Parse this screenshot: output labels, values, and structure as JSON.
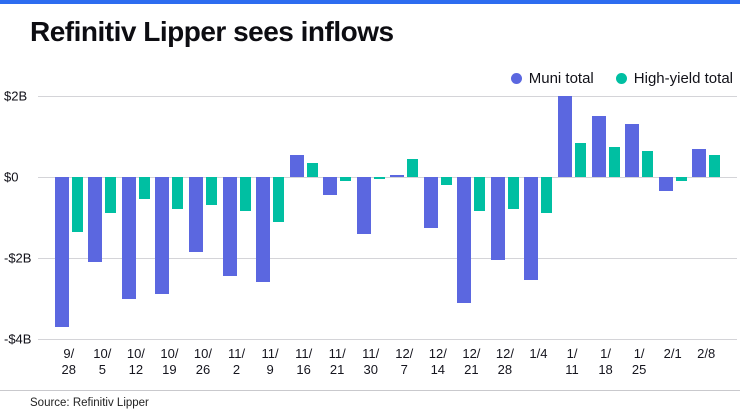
{
  "accent_color": "#2d6cf0",
  "title": "Refinitiv Lipper sees inflows",
  "source": "Source: Refinitiv Lipper",
  "legend": [
    {
      "label": "Muni total",
      "color": "#5b67e0"
    },
    {
      "label": "High-yield total",
      "color": "#00bfa2"
    }
  ],
  "chart_data": {
    "type": "bar",
    "title": "Refinitiv Lipper sees inflows",
    "categories": [
      "9/28",
      "10/5",
      "10/12",
      "10/19",
      "10/26",
      "11/2",
      "11/9",
      "11/16",
      "11/21",
      "11/30",
      "12/7",
      "12/14",
      "12/21",
      "12/28",
      "1/4",
      "1/11",
      "1/18",
      "1/25",
      "2/1",
      "2/8"
    ],
    "category_lines": [
      [
        "9/",
        "28"
      ],
      [
        "10/",
        "5"
      ],
      [
        "10/",
        "12"
      ],
      [
        "10/",
        "19"
      ],
      [
        "10/",
        "26"
      ],
      [
        "11/",
        "2"
      ],
      [
        "11/",
        "9"
      ],
      [
        "11/",
        "16"
      ],
      [
        "11/",
        "21"
      ],
      [
        "11/",
        "30"
      ],
      [
        "12/",
        "7"
      ],
      [
        "12/",
        "14"
      ],
      [
        "12/",
        "21"
      ],
      [
        "12/",
        "28"
      ],
      [
        "1/4"
      ],
      [
        "1/",
        "11"
      ],
      [
        "1/",
        "18"
      ],
      [
        "1/",
        "25"
      ],
      [
        "2/1"
      ],
      [
        "2/8"
      ]
    ],
    "series": [
      {
        "name": "Muni total",
        "color": "#5b67e0",
        "values": [
          -3.7,
          -2.1,
          -3.0,
          -2.9,
          -1.85,
          -2.45,
          -2.6,
          0.55,
          -0.45,
          -1.4,
          0.05,
          -1.25,
          -3.1,
          -2.05,
          -2.55,
          2.0,
          1.5,
          1.3,
          -0.35,
          0.7
        ]
      },
      {
        "name": "High-yield total",
        "color": "#00bfa2",
        "values": [
          -1.35,
          -0.9,
          -0.55,
          -0.8,
          -0.7,
          -0.85,
          -1.1,
          0.35,
          -0.1,
          -0.05,
          0.45,
          -0.2,
          -0.85,
          -0.8,
          -0.9,
          0.85,
          0.75,
          0.65,
          -0.1,
          0.55
        ]
      }
    ],
    "ylim": [
      -4,
      2
    ],
    "yticks": [
      {
        "value": 2,
        "label": "$2B"
      },
      {
        "value": 0,
        "label": "$0"
      },
      {
        "value": -2,
        "label": "-$2B"
      },
      {
        "value": -4,
        "label": "-$4B"
      }
    ],
    "ylabel": "",
    "xlabel": "",
    "grid": true,
    "legend_position": "top-right"
  }
}
